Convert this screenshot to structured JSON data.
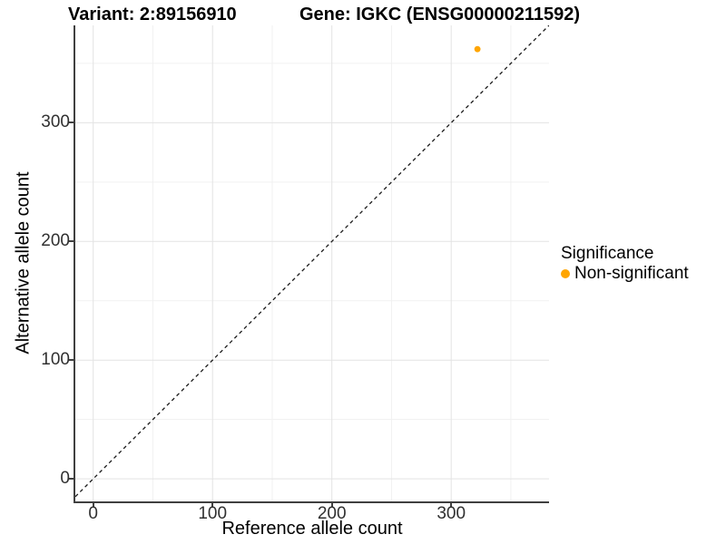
{
  "titles": {
    "variant": "Variant: 2:89156910",
    "gene": "Gene: IGKC (ENSG00000211592)"
  },
  "chart_data": {
    "type": "scatter",
    "xlabel": "Reference allele count",
    "ylabel": "Alternative allele count",
    "xlim": [
      -15,
      382
    ],
    "ylim": [
      -19,
      382
    ],
    "x_ticks": [
      0,
      100,
      200,
      300
    ],
    "y_ticks": [
      0,
      100,
      200,
      300
    ],
    "minor_ticks": [
      50,
      150,
      250,
      350
    ],
    "grid": true,
    "points": [
      {
        "x": 322,
        "y": 362,
        "significance": "Non-significant"
      }
    ],
    "reference_line": {
      "type": "identity y=x",
      "style": "dashed",
      "color": "#1a1a1a"
    },
    "legend": {
      "title": "Significance",
      "position": "right",
      "entries": [
        {
          "label": "Non-significant",
          "color": "#FFA500"
        }
      ]
    }
  },
  "colors": {
    "background": "#FFFFFF",
    "axis_line": "#404040",
    "grid_major": "#E3E3E3",
    "grid_minor": "#F1F1F1",
    "tick_label": "#303030",
    "title": "#000000",
    "point": "#FFA500"
  }
}
